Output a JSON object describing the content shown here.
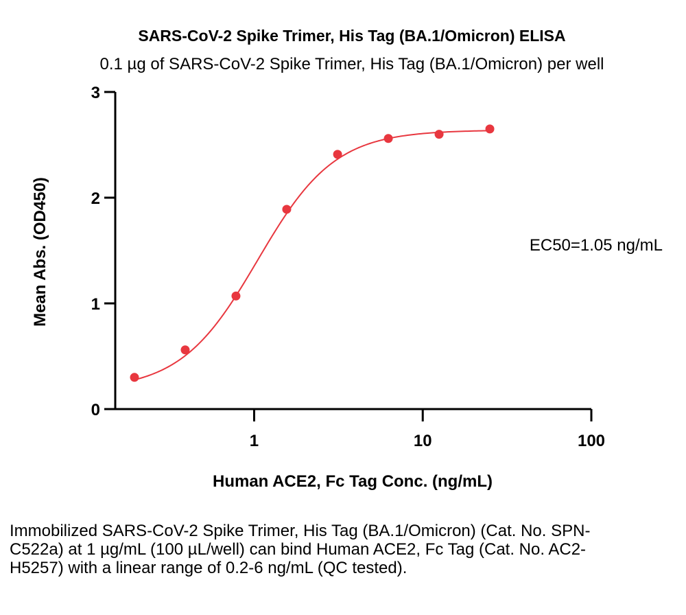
{
  "chart_data": {
    "type": "scatter",
    "title": "SARS-CoV-2 Spike Trimer, His Tag (BA.1/Omicron) ELISA",
    "subtitle": "0.1 µg of SARS-CoV-2 Spike Trimer, His Tag (BA.1/Omicron) per well",
    "xlabel": "Human ACE2, Fc Tag Conc. (ng/mL)",
    "ylabel": "Mean Abs. (OD450)",
    "x_scale": "log",
    "xlim": [
      0.15,
      100
    ],
    "ylim": [
      0,
      3
    ],
    "x_ticks": [
      1,
      10,
      100
    ],
    "x_tick_labels": [
      "1",
      "10",
      "100"
    ],
    "y_ticks": [
      0,
      1,
      2,
      3
    ],
    "y_tick_labels": [
      "0",
      "1",
      "2",
      "3"
    ],
    "grid": false,
    "legend": "none",
    "series": [
      {
        "x": [
          0.195,
          0.39,
          0.78,
          1.56,
          3.125,
          6.25,
          12.5,
          25
        ],
        "y": [
          0.3,
          0.56,
          1.07,
          1.89,
          2.41,
          2.56,
          2.6,
          2.65
        ]
      }
    ],
    "fit": {
      "model": "4PL",
      "bottom": 0.18,
      "top": 2.64,
      "ec50": 1.05,
      "hill": 1.9
    },
    "annotation": "EC50=1.05 ng/mL",
    "point_color": "#e8373f",
    "line_color": "#e8373f"
  },
  "caption": "Immobilized SARS-CoV-2 Spike Trimer, His Tag (BA.1/Omicron) (Cat. No. SPN-C522a) at 1 µg/mL (100 µL/well) can bind Human ACE2, Fc Tag (Cat. No. AC2-H5257) with a linear range of 0.2-6 ng/mL (QC tested)."
}
